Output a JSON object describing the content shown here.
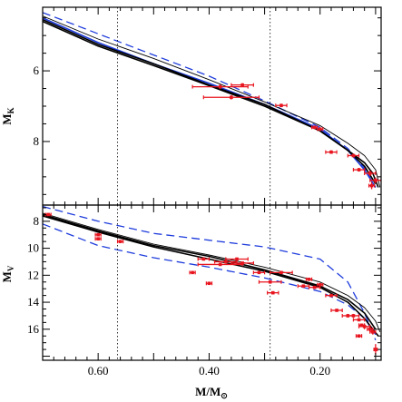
{
  "chart_data": [
    {
      "type": "scatter",
      "panel": "top",
      "ylabel_main": "M",
      "ylabel_sub": "K",
      "xlim": [
        0.7,
        0.09
      ],
      "ylim": [
        4.2,
        9.8
      ],
      "y_inverted": true,
      "x_ticks": [
        0.6,
        0.4,
        0.2
      ],
      "y_ticks": [
        6,
        8
      ],
      "y_tick_labels": [
        "6",
        "8"
      ],
      "grid": false,
      "legend": "none",
      "vertical_lines": [
        0.565,
        0.29
      ],
      "colors": {
        "points": "#e8141e",
        "model_dashed": "#1e3cdc",
        "model_solid": "#000000"
      },
      "points": [
        {
          "x": 0.38,
          "y": 6.45,
          "xerr": 0.05,
          "yerr": 0.06
        },
        {
          "x": 0.36,
          "y": 6.75,
          "xerr": 0.05,
          "yerr": 0.06
        },
        {
          "x": 0.34,
          "y": 6.4,
          "xerr": 0.02,
          "yerr": 0.05
        },
        {
          "x": 0.27,
          "y": 6.98,
          "xerr": 0.01,
          "yerr": 0.05
        },
        {
          "x": 0.21,
          "y": 7.6,
          "xerr": 0.005,
          "yerr": 0.05
        },
        {
          "x": 0.2,
          "y": 7.65,
          "xerr": 0.005,
          "yerr": 0.05
        },
        {
          "x": 0.18,
          "y": 8.3,
          "xerr": 0.01,
          "yerr": 0.05
        },
        {
          "x": 0.14,
          "y": 8.4,
          "xerr": 0.01,
          "yerr": 0.05
        },
        {
          "x": 0.13,
          "y": 8.8,
          "xerr": 0.01,
          "yerr": 0.05
        },
        {
          "x": 0.11,
          "y": 8.9,
          "xerr": 0.01,
          "yerr": 0.08
        },
        {
          "x": 0.1,
          "y": 9.1,
          "xerr": 0.01,
          "yerr": 0.08
        },
        {
          "x": 0.107,
          "y": 9.25,
          "xerr": 0.005,
          "yerr": 0.1
        }
      ],
      "curves": {
        "blue_dashed": [
          [
            0.7,
            4.35
          ],
          [
            0.6,
            4.95
          ],
          [
            0.5,
            5.55
          ],
          [
            0.4,
            6.15
          ],
          [
            0.3,
            6.85
          ],
          [
            0.2,
            7.6
          ],
          [
            0.15,
            8.2
          ],
          [
            0.12,
            8.75
          ],
          [
            0.1,
            9.3
          ]
        ],
        "blue_solid": [
          [
            0.7,
            4.5
          ],
          [
            0.6,
            5.2
          ],
          [
            0.5,
            5.8
          ],
          [
            0.4,
            6.35
          ],
          [
            0.3,
            6.95
          ],
          [
            0.2,
            7.65
          ],
          [
            0.15,
            8.25
          ],
          [
            0.12,
            8.8
          ],
          [
            0.1,
            9.3
          ]
        ],
        "black_1": [
          [
            0.7,
            4.55
          ],
          [
            0.6,
            5.25
          ],
          [
            0.5,
            5.8
          ],
          [
            0.4,
            6.4
          ],
          [
            0.3,
            6.95
          ],
          [
            0.2,
            7.7
          ],
          [
            0.15,
            8.25
          ],
          [
            0.12,
            8.7
          ],
          [
            0.1,
            9.2
          ]
        ],
        "black_2": [
          [
            0.7,
            4.6
          ],
          [
            0.6,
            5.3
          ],
          [
            0.5,
            5.85
          ],
          [
            0.4,
            6.42
          ],
          [
            0.3,
            7.0
          ],
          [
            0.2,
            7.7
          ],
          [
            0.15,
            8.25
          ],
          [
            0.12,
            8.6
          ],
          [
            0.105,
            8.9
          ],
          [
            0.095,
            9.3
          ]
        ],
        "black_thin": [
          [
            0.7,
            4.45
          ],
          [
            0.6,
            5.1
          ],
          [
            0.5,
            5.65
          ],
          [
            0.4,
            6.25
          ],
          [
            0.3,
            6.88
          ],
          [
            0.2,
            7.55
          ],
          [
            0.15,
            8.05
          ],
          [
            0.12,
            8.4
          ],
          [
            0.1,
            8.8
          ],
          [
            0.092,
            9.3
          ]
        ]
      }
    },
    {
      "type": "scatter",
      "panel": "bottom",
      "ylabel_main": "M",
      "ylabel_sub": "V",
      "xlabel_main": "M/M",
      "xlabel_symbol": "⊙",
      "xlim": [
        0.7,
        0.09
      ],
      "ylim": [
        6.8,
        18.3
      ],
      "y_inverted": true,
      "x_ticks": [
        0.6,
        0.4,
        0.2
      ],
      "x_tick_labels": [
        "0.60",
        "0.40",
        "0.20"
      ],
      "y_ticks": [
        8,
        10,
        12,
        14,
        16
      ],
      "y_tick_labels": [
        "8",
        "10",
        "12",
        "14",
        "16"
      ],
      "grid": false,
      "legend": "none",
      "vertical_lines": [
        0.565,
        0.29
      ],
      "points": [
        {
          "x": 0.69,
          "y": 7.5,
          "xerr": 0.005,
          "yerr": 0.1
        },
        {
          "x": 0.6,
          "y": 9.0,
          "xerr": 0.005,
          "yerr": 0.1
        },
        {
          "x": 0.6,
          "y": 9.3,
          "xerr": 0.005,
          "yerr": 0.1
        },
        {
          "x": 0.56,
          "y": 9.5,
          "xerr": 0.005,
          "yerr": 0.1
        },
        {
          "x": 0.43,
          "y": 11.8,
          "xerr": 0.005,
          "yerr": 0.1
        },
        {
          "x": 0.41,
          "y": 10.8,
          "xerr": 0.01,
          "yerr": 0.1
        },
        {
          "x": 0.4,
          "y": 12.6,
          "xerr": 0.005,
          "yerr": 0.1
        },
        {
          "x": 0.38,
          "y": 11.2,
          "xerr": 0.04,
          "yerr": 0.1
        },
        {
          "x": 0.37,
          "y": 11.0,
          "xerr": 0.02,
          "yerr": 0.1
        },
        {
          "x": 0.35,
          "y": 10.8,
          "xerr": 0.02,
          "yerr": 0.1
        },
        {
          "x": 0.34,
          "y": 11.1,
          "xerr": 0.02,
          "yerr": 0.1
        },
        {
          "x": 0.31,
          "y": 11.8,
          "xerr": 0.01,
          "yerr": 0.1
        },
        {
          "x": 0.29,
          "y": 12.5,
          "xerr": 0.02,
          "yerr": 0.1
        },
        {
          "x": 0.285,
          "y": 13.3,
          "xerr": 0.01,
          "yerr": 0.1
        },
        {
          "x": 0.27,
          "y": 11.8,
          "xerr": 0.02,
          "yerr": 0.1
        },
        {
          "x": 0.23,
          "y": 12.8,
          "xerr": 0.01,
          "yerr": 0.1
        },
        {
          "x": 0.22,
          "y": 12.3,
          "xerr": 0.005,
          "yerr": 0.1
        },
        {
          "x": 0.21,
          "y": 12.9,
          "xerr": 0.01,
          "yerr": 0.1
        },
        {
          "x": 0.2,
          "y": 12.7,
          "xerr": 0.005,
          "yerr": 0.1
        },
        {
          "x": 0.18,
          "y": 13.5,
          "xerr": 0.01,
          "yerr": 0.1
        },
        {
          "x": 0.17,
          "y": 14.6,
          "xerr": 0.01,
          "yerr": 0.1
        },
        {
          "x": 0.15,
          "y": 15.0,
          "xerr": 0.01,
          "yerr": 0.1
        },
        {
          "x": 0.14,
          "y": 15.0,
          "xerr": 0.01,
          "yerr": 0.1
        },
        {
          "x": 0.13,
          "y": 15.3,
          "xerr": 0.01,
          "yerr": 0.1
        },
        {
          "x": 0.125,
          "y": 15.7,
          "xerr": 0.005,
          "yerr": 0.1
        },
        {
          "x": 0.12,
          "y": 15.8,
          "xerr": 0.01,
          "yerr": 0.2
        },
        {
          "x": 0.11,
          "y": 16.0,
          "xerr": 0.005,
          "yerr": 0.2
        },
        {
          "x": 0.105,
          "y": 16.2,
          "xerr": 0.005,
          "yerr": 0.2
        },
        {
          "x": 0.13,
          "y": 16.5,
          "xerr": 0.005,
          "yerr": 0.1
        },
        {
          "x": 0.1,
          "y": 17.5,
          "xerr": 0.003,
          "yerr": 0.4
        }
      ],
      "curves": {
        "blue_dashed_upper": [
          [
            0.7,
            6.9
          ],
          [
            0.6,
            8.0
          ],
          [
            0.5,
            8.9
          ],
          [
            0.4,
            9.4
          ],
          [
            0.3,
            9.9
          ],
          [
            0.2,
            10.8
          ],
          [
            0.15,
            12.5
          ],
          [
            0.12,
            14.8
          ],
          [
            0.1,
            16.8
          ]
        ],
        "blue_dashed_lower": [
          [
            0.7,
            8.2
          ],
          [
            0.6,
            9.8
          ],
          [
            0.5,
            10.7
          ],
          [
            0.4,
            11.4
          ],
          [
            0.3,
            12.2
          ],
          [
            0.2,
            13.2
          ],
          [
            0.15,
            14.2
          ],
          [
            0.12,
            15.2
          ],
          [
            0.1,
            16.4
          ]
        ],
        "black_1": [
          [
            0.7,
            7.5
          ],
          [
            0.6,
            8.7
          ],
          [
            0.5,
            9.8
          ],
          [
            0.4,
            10.6
          ],
          [
            0.3,
            11.6
          ],
          [
            0.2,
            12.8
          ],
          [
            0.15,
            13.8
          ],
          [
            0.12,
            14.8
          ],
          [
            0.1,
            16.0
          ]
        ],
        "black_2": [
          [
            0.7,
            7.6
          ],
          [
            0.6,
            8.8
          ],
          [
            0.5,
            9.9
          ],
          [
            0.4,
            10.8
          ],
          [
            0.3,
            11.7
          ],
          [
            0.2,
            12.9
          ],
          [
            0.15,
            14.0
          ],
          [
            0.12,
            15.2
          ],
          [
            0.105,
            16.0
          ],
          [
            0.095,
            16.5
          ]
        ],
        "black_thin": [
          [
            0.7,
            7.4
          ],
          [
            0.6,
            8.6
          ],
          [
            0.5,
            9.7
          ],
          [
            0.4,
            10.5
          ],
          [
            0.3,
            11.4
          ],
          [
            0.2,
            12.5
          ],
          [
            0.15,
            13.5
          ],
          [
            0.12,
            14.4
          ],
          [
            0.1,
            15.4
          ],
          [
            0.092,
            16.2
          ]
        ]
      }
    }
  ]
}
